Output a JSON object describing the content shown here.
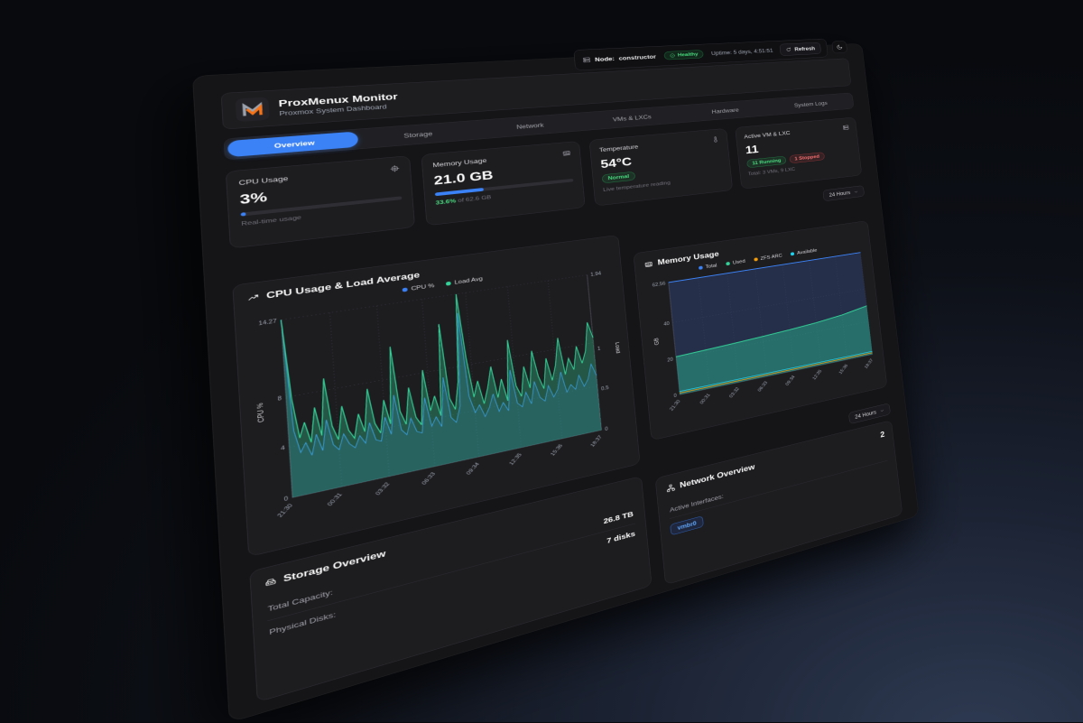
{
  "status_bar": {
    "node_label": "Node:",
    "node_value": "constructor",
    "health_label": "Healthy",
    "uptime": "Uptime: 5 days, 4:51:51",
    "refresh_label": "Refresh"
  },
  "header": {
    "title": "ProxMenux Monitor",
    "subtitle": "Proxmox System Dashboard"
  },
  "tabs": [
    {
      "label": "Overview",
      "active": true
    },
    {
      "label": "Storage",
      "active": false
    },
    {
      "label": "Network",
      "active": false
    },
    {
      "label": "VMs & LXCs",
      "active": false
    },
    {
      "label": "Hardware",
      "active": false
    },
    {
      "label": "System Logs",
      "active": false
    }
  ],
  "stats": {
    "cpu": {
      "label": "CPU Usage",
      "value": "3%",
      "percent": 3,
      "sub": "Real-time usage"
    },
    "memory": {
      "label": "Memory Usage",
      "value": "21.0 GB",
      "percent": 33.6,
      "sub_highlight": "33.6%",
      "sub_rest": " of 62.6 GB"
    },
    "temperature": {
      "label": "Temperature",
      "value": "54°C",
      "badge": "Normal",
      "sub": "Live temperature reading"
    },
    "vm": {
      "label": "Active VM & LXC",
      "value": "11",
      "running": "11 Running",
      "stopped": "1 Stopped",
      "sub": "Total: 3 VMs, 9 LXC"
    }
  },
  "time_range": {
    "selected": "24 Hours"
  },
  "chart_data": [
    {
      "id": "cpu_load",
      "type": "area",
      "title": "CPU Usage & Load Average",
      "x_labels": [
        "21:30",
        "00:31",
        "03:32",
        "06:33",
        "09:34",
        "12:35",
        "15:36",
        "18:37"
      ],
      "y_left": {
        "label": "CPU %",
        "ticks": [
          0,
          4,
          8
        ],
        "max": 14.27,
        "max_label": "14.27"
      },
      "y_right": {
        "label": "Load",
        "ticks": [
          0,
          0.5,
          1
        ],
        "max": 1.94,
        "max_label": "1.94"
      },
      "series": [
        {
          "name": "CPU %",
          "color": "#3b82f6",
          "axis": "left",
          "fill": "rgba(59,130,246,0.18)",
          "width": 1.2,
          "values": [
            14.27,
            5.2,
            3.4,
            4.1,
            3.0,
            4.6,
            3.2,
            5.6,
            3.5,
            3.0,
            4.2,
            3.3,
            2.9,
            3.8,
            3.1,
            4.7,
            3.2,
            3.0,
            4.9,
            3.4,
            6.6,
            3.6,
            3.1,
            4.4,
            3.2,
            3.0,
            5.9,
            3.4,
            4.1,
            3.2,
            7.3,
            3.8,
            3.3,
            4.6,
            12.6,
            5.3,
            3.8,
            4.4,
            3.3,
            4.0,
            5.1,
            3.5,
            4.2,
            3.4,
            6.9,
            3.9,
            3.5,
            4.7,
            3.6,
            5.5,
            4.0,
            3.6,
            4.9,
            3.8,
            4.4,
            5.9,
            4.0,
            4.6,
            4.1,
            5.3,
            4.2,
            4.8,
            6.1,
            5.0
          ]
        },
        {
          "name": "Load Avg",
          "color": "#34d399",
          "axis": "right",
          "fill": "rgba(52,211,153,0.32)",
          "width": 1.5,
          "values": [
            1.94,
            1.05,
            0.62,
            0.78,
            0.55,
            0.92,
            0.6,
            1.22,
            0.68,
            0.52,
            0.88,
            0.6,
            0.5,
            0.76,
            0.55,
            1.02,
            0.62,
            0.5,
            0.86,
            0.58,
            1.45,
            0.7,
            0.54,
            0.95,
            0.6,
            0.5,
            1.12,
            0.64,
            0.8,
            0.56,
            1.62,
            0.74,
            0.6,
            0.92,
            1.94,
            1.18,
            0.7,
            0.88,
            0.6,
            0.78,
            1.02,
            0.64,
            0.85,
            0.58,
            1.3,
            0.74,
            0.6,
            0.95,
            0.68,
            1.12,
            0.8,
            0.64,
            1.0,
            0.72,
            0.9,
            1.22,
            0.76,
            0.95,
            0.8,
            1.08,
            0.86,
            1.0,
            1.35,
            1.15
          ]
        }
      ]
    },
    {
      "id": "memory",
      "type": "area",
      "title": "Memory Usage",
      "x_labels": [
        "21:30",
        "00:31",
        "03:32",
        "06:33",
        "09:34",
        "12:35",
        "15:36",
        "18:37"
      ],
      "y": {
        "label": "GB",
        "ticks": [
          0,
          20,
          40
        ],
        "max": 62.56,
        "max_label": "62.56"
      },
      "series": [
        {
          "name": "Total",
          "color": "#3b82f6",
          "fill": "rgba(56,88,168,0.30)",
          "width": 2,
          "values": [
            62.56,
            62.56,
            62.56,
            62.56,
            62.56,
            62.56,
            62.56,
            62.56
          ]
        },
        {
          "name": "Used",
          "color": "#34d399",
          "fill": "rgba(45,212,160,0.38)",
          "width": 2,
          "values": [
            21.0,
            21.6,
            22.3,
            23.1,
            24.0,
            25.2,
            26.9,
            29.6
          ]
        },
        {
          "name": "ZFS ARC",
          "color": "#f59e0b",
          "width": 1.5,
          "values": [
            0.9,
            0.9,
            0.9,
            0.9,
            0.9,
            0.9,
            0.9,
            0.9
          ]
        },
        {
          "name": "Available",
          "color": "#22d3ee",
          "width": 1.5,
          "values": [
            1.8,
            1.8,
            1.8,
            1.8,
            1.8,
            1.8,
            1.8,
            1.8
          ]
        }
      ]
    }
  ],
  "storage": {
    "title": "Storage Overview",
    "rows": [
      {
        "label": "Total Capacity:",
        "value": "26.8 TB"
      },
      {
        "label": "Physical Disks:",
        "value": "7 disks"
      }
    ]
  },
  "network": {
    "title": "Network Overview",
    "count": "2",
    "interfaces_label": "Active Interfaces:",
    "interfaces": [
      {
        "name": "vmbr0"
      }
    ]
  },
  "icons": {
    "node-icon": "server-stack",
    "health-icon": "check-circle",
    "refresh-icon": "circular-arrow",
    "theme-icon": "moon-crescent",
    "cpu-icon": "cpu-chip",
    "memory-icon": "ram-stick",
    "temperature-icon": "thermometer",
    "vm-icon": "server-stack",
    "cpu-chart-icon": "trending-up",
    "storage-icon": "hard-drive",
    "network-icon": "network-nodes",
    "select-icon": "chevron-down"
  },
  "colors": {
    "accent_blue": "#3b82f6",
    "green": "#22c55e",
    "red": "#ef4444",
    "orange": "#f59e0b",
    "cyan": "#22d3ee",
    "chart_green": "#34d399",
    "logo_gray": "#9ca3af",
    "logo_orange": "#f97316"
  }
}
